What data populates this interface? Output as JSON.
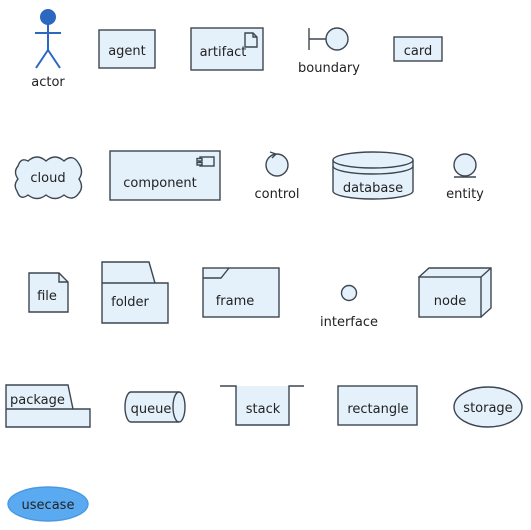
{
  "colors": {
    "fill": "#e4f1fb",
    "stroke": "#3d4651",
    "actor": "#2c68c0",
    "usecase_fill": "#5aaaf2",
    "usecase_stroke": "#4a98e0",
    "text": "#222222"
  },
  "elements": {
    "actor": "actor",
    "agent": "agent",
    "artifact": "artifact",
    "boundary": "boundary",
    "card": "card",
    "cloud": "cloud",
    "component": "component",
    "control": "control",
    "database": "database",
    "entity": "entity",
    "file": "file",
    "folder": "folder",
    "frame": "frame",
    "interface": "interface",
    "node": "node",
    "package": "package",
    "queue": "queue",
    "stack": "stack",
    "rectangle": "rectangle",
    "storage": "storage",
    "usecase": "usecase"
  }
}
